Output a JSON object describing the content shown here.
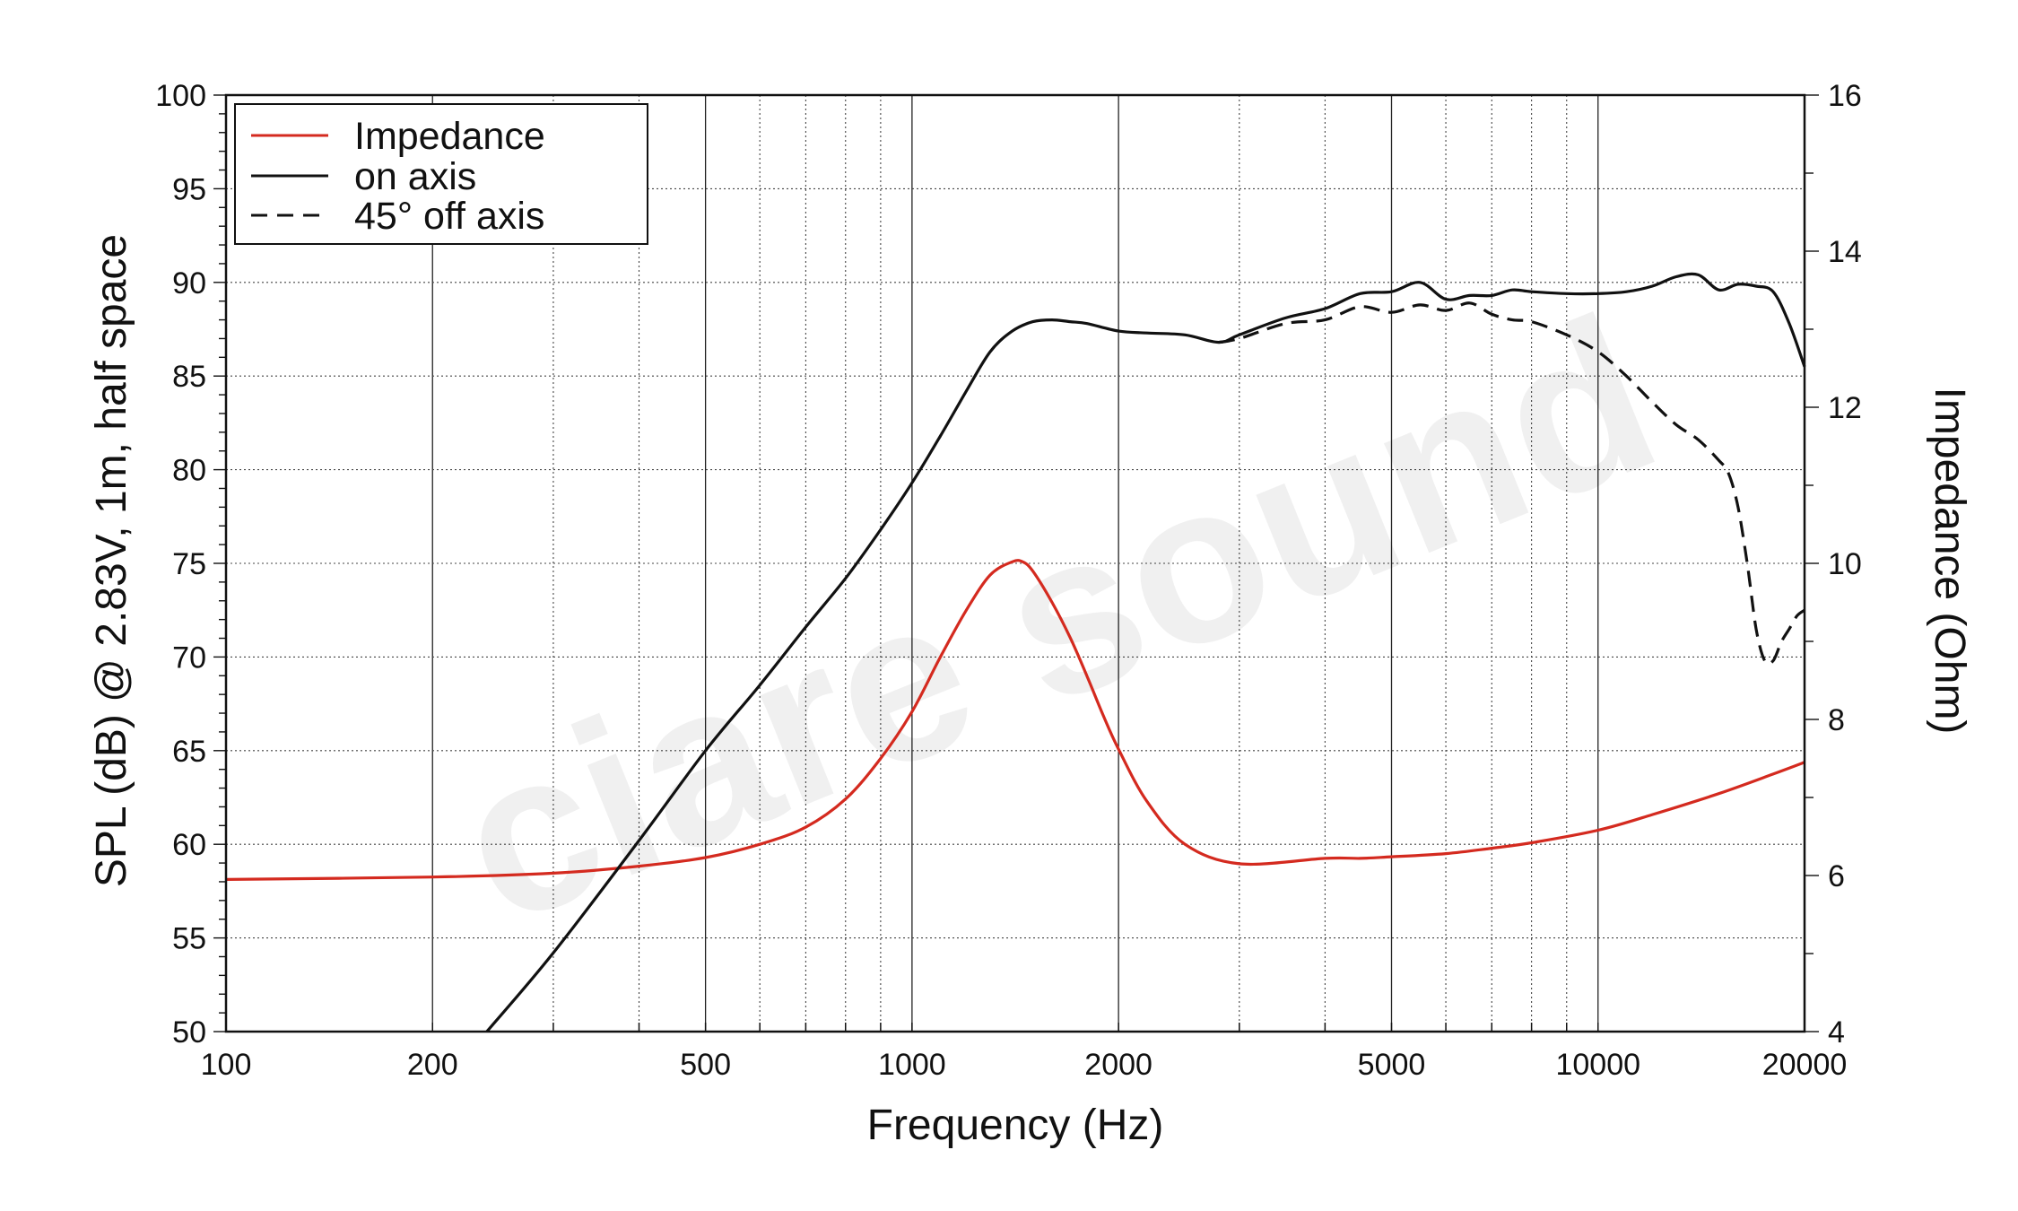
{
  "chart_data": {
    "type": "line",
    "xlabel": "Frequency (Hz)",
    "ylabel": "SPL (dB) @ 2.83V, 1m, half space",
    "y2label": "Impedance (Ohm)",
    "x_scale": "log",
    "xlim": [
      100,
      20000
    ],
    "ylim": [
      50,
      100
    ],
    "y2lim": [
      4,
      16
    ],
    "grid": true,
    "legend_position": "top-left",
    "x_ticks": [
      100,
      200,
      500,
      1000,
      2000,
      5000,
      10000,
      20000
    ],
    "x_tick_labels": [
      "100",
      "200",
      "500",
      "1000",
      "2000",
      "5000",
      "10000",
      "20000"
    ],
    "y_ticks": [
      50,
      55,
      60,
      65,
      70,
      75,
      80,
      85,
      90,
      95,
      100
    ],
    "y_tick_labels": [
      "50",
      "55",
      "60",
      "65",
      "70",
      "75",
      "80",
      "85",
      "90",
      "95",
      "100"
    ],
    "y2_ticks": [
      4,
      6,
      8,
      10,
      12,
      14,
      16
    ],
    "y2_tick_labels": [
      "4",
      "6",
      "8",
      "10",
      "12",
      "14",
      "16"
    ],
    "watermark": "ciare sound",
    "series": [
      {
        "name": "Impedance",
        "axis": "right",
        "color": "#d42a1f",
        "style": "solid",
        "x": [
          100,
          200,
          300,
          400,
          500,
          600,
          700,
          800,
          900,
          1000,
          1100,
          1200,
          1300,
          1400,
          1450,
          1500,
          1600,
          1700,
          1800,
          1900,
          2000,
          2200,
          2500,
          3000,
          4000,
          4500,
          5000,
          6000,
          7000,
          8000,
          10000,
          12000,
          15000,
          18000,
          20000
        ],
        "y": [
          5.95,
          5.98,
          6.03,
          6.12,
          6.23,
          6.4,
          6.62,
          6.98,
          7.5,
          8.1,
          8.8,
          9.4,
          9.85,
          10.02,
          10.02,
          9.9,
          9.5,
          9.05,
          8.55,
          8.05,
          7.62,
          6.95,
          6.4,
          6.15,
          6.22,
          6.22,
          6.24,
          6.28,
          6.35,
          6.42,
          6.58,
          6.78,
          7.05,
          7.3,
          7.45
        ]
      },
      {
        "name": "on axis",
        "axis": "left",
        "color": "#111111",
        "style": "solid",
        "x": [
          240,
          300,
          400,
          500,
          600,
          700,
          800,
          900,
          1000,
          1100,
          1200,
          1300,
          1400,
          1500,
          1600,
          1700,
          1800,
          2000,
          2200,
          2500,
          2800,
          3000,
          3500,
          4000,
          4500,
          5000,
          5500,
          6000,
          6500,
          7000,
          7500,
          8000,
          9000,
          10000,
          11000,
          12000,
          13000,
          14000,
          15000,
          16000,
          17000,
          18000,
          19000,
          20000
        ],
        "y": [
          50,
          54.2,
          60.2,
          65.0,
          68.5,
          71.6,
          74.2,
          76.8,
          79.3,
          81.8,
          84.2,
          86.3,
          87.4,
          87.9,
          88.0,
          87.9,
          87.8,
          87.4,
          87.3,
          87.2,
          86.8,
          87.2,
          88.1,
          88.6,
          89.4,
          89.5,
          90.0,
          89.1,
          89.3,
          89.3,
          89.6,
          89.5,
          89.4,
          89.4,
          89.5,
          89.8,
          90.3,
          90.4,
          89.6,
          89.9,
          89.8,
          89.5,
          87.8,
          85.5
        ]
      },
      {
        "name": "45° off axis",
        "axis": "left",
        "color": "#111111",
        "style": "dashed",
        "x": [
          2800,
          3000,
          3500,
          4000,
          4500,
          5000,
          5500,
          6000,
          6500,
          7000,
          7500,
          8000,
          9000,
          10000,
          11000,
          12000,
          13000,
          14000,
          15000,
          15500,
          16000,
          16500,
          17000,
          17500,
          18000,
          18500,
          19000,
          19500,
          20000
        ],
        "y": [
          86.8,
          87.0,
          87.8,
          88.0,
          88.7,
          88.4,
          88.8,
          88.5,
          88.9,
          88.3,
          88.0,
          87.9,
          87.2,
          86.3,
          85.0,
          83.6,
          82.4,
          81.6,
          80.5,
          79.8,
          78.0,
          75.0,
          71.5,
          69.8,
          69.8,
          70.8,
          71.5,
          72.2,
          72.5
        ]
      }
    ]
  }
}
